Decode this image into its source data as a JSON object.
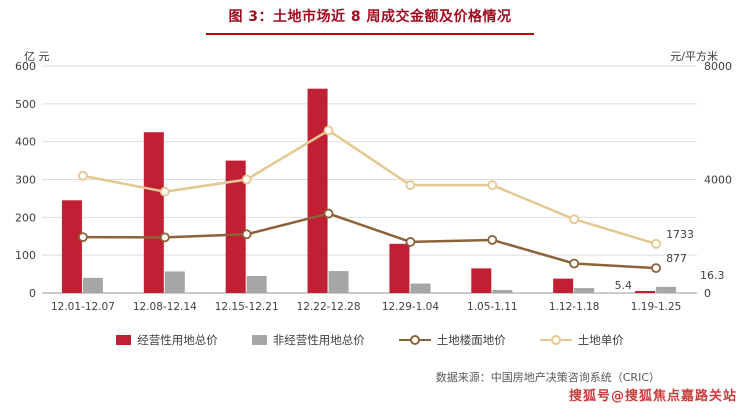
{
  "title": "图 3：土地市场近 8 周成交金额及价格情况",
  "left_axis_unit": "亿 元",
  "right_axis_unit": "元/平方米",
  "source": "数据来源：中国房地产决策咨询系统（CRIC）",
  "watermark": "搜狐号@搜狐焦点嘉路关站",
  "chart_data": {
    "type": "bar",
    "subtype": "combo bar+line, dual axis",
    "categories": [
      "12.01-12.07",
      "12.08-12.14",
      "12.15-12.21",
      "12.22-12.28",
      "12.29-1.04",
      "1.05-1.11",
      "1.12-1.18",
      "1.19-1.25"
    ],
    "series": [
      {
        "name": "经营性用地总价",
        "type": "bar",
        "axis": "left",
        "color": "#c11f33",
        "values": [
          245,
          425,
          350,
          540,
          130,
          65,
          38,
          5.4
        ]
      },
      {
        "name": "非经营性用地总价",
        "type": "bar",
        "axis": "left",
        "color": "#a6a6a6",
        "values": [
          40,
          57,
          45,
          58,
          25,
          8,
          13,
          16.3
        ]
      },
      {
        "name": "土地楼面地价",
        "type": "line",
        "axis": "right",
        "color": "#8c6239",
        "values": [
          1970,
          1960,
          2070,
          2800,
          1800,
          1870,
          1040,
          877
        ]
      },
      {
        "name": "土地单价",
        "type": "line",
        "axis": "right",
        "color": "#e4c891",
        "values": [
          4130,
          3570,
          4000,
          5730,
          3800,
          3800,
          2600,
          1733
        ]
      }
    ],
    "left_axis": {
      "label": "亿 元",
      "min": 0,
      "max": 600,
      "step": 100
    },
    "right_axis": {
      "label": "元/平方米",
      "min": 0,
      "max": 8000,
      "ticks": [
        0,
        4000,
        8000
      ]
    },
    "end_labels": [
      "5.4",
      "16.3",
      "877",
      "1733"
    ],
    "grid": true,
    "legend_position": "bottom"
  }
}
